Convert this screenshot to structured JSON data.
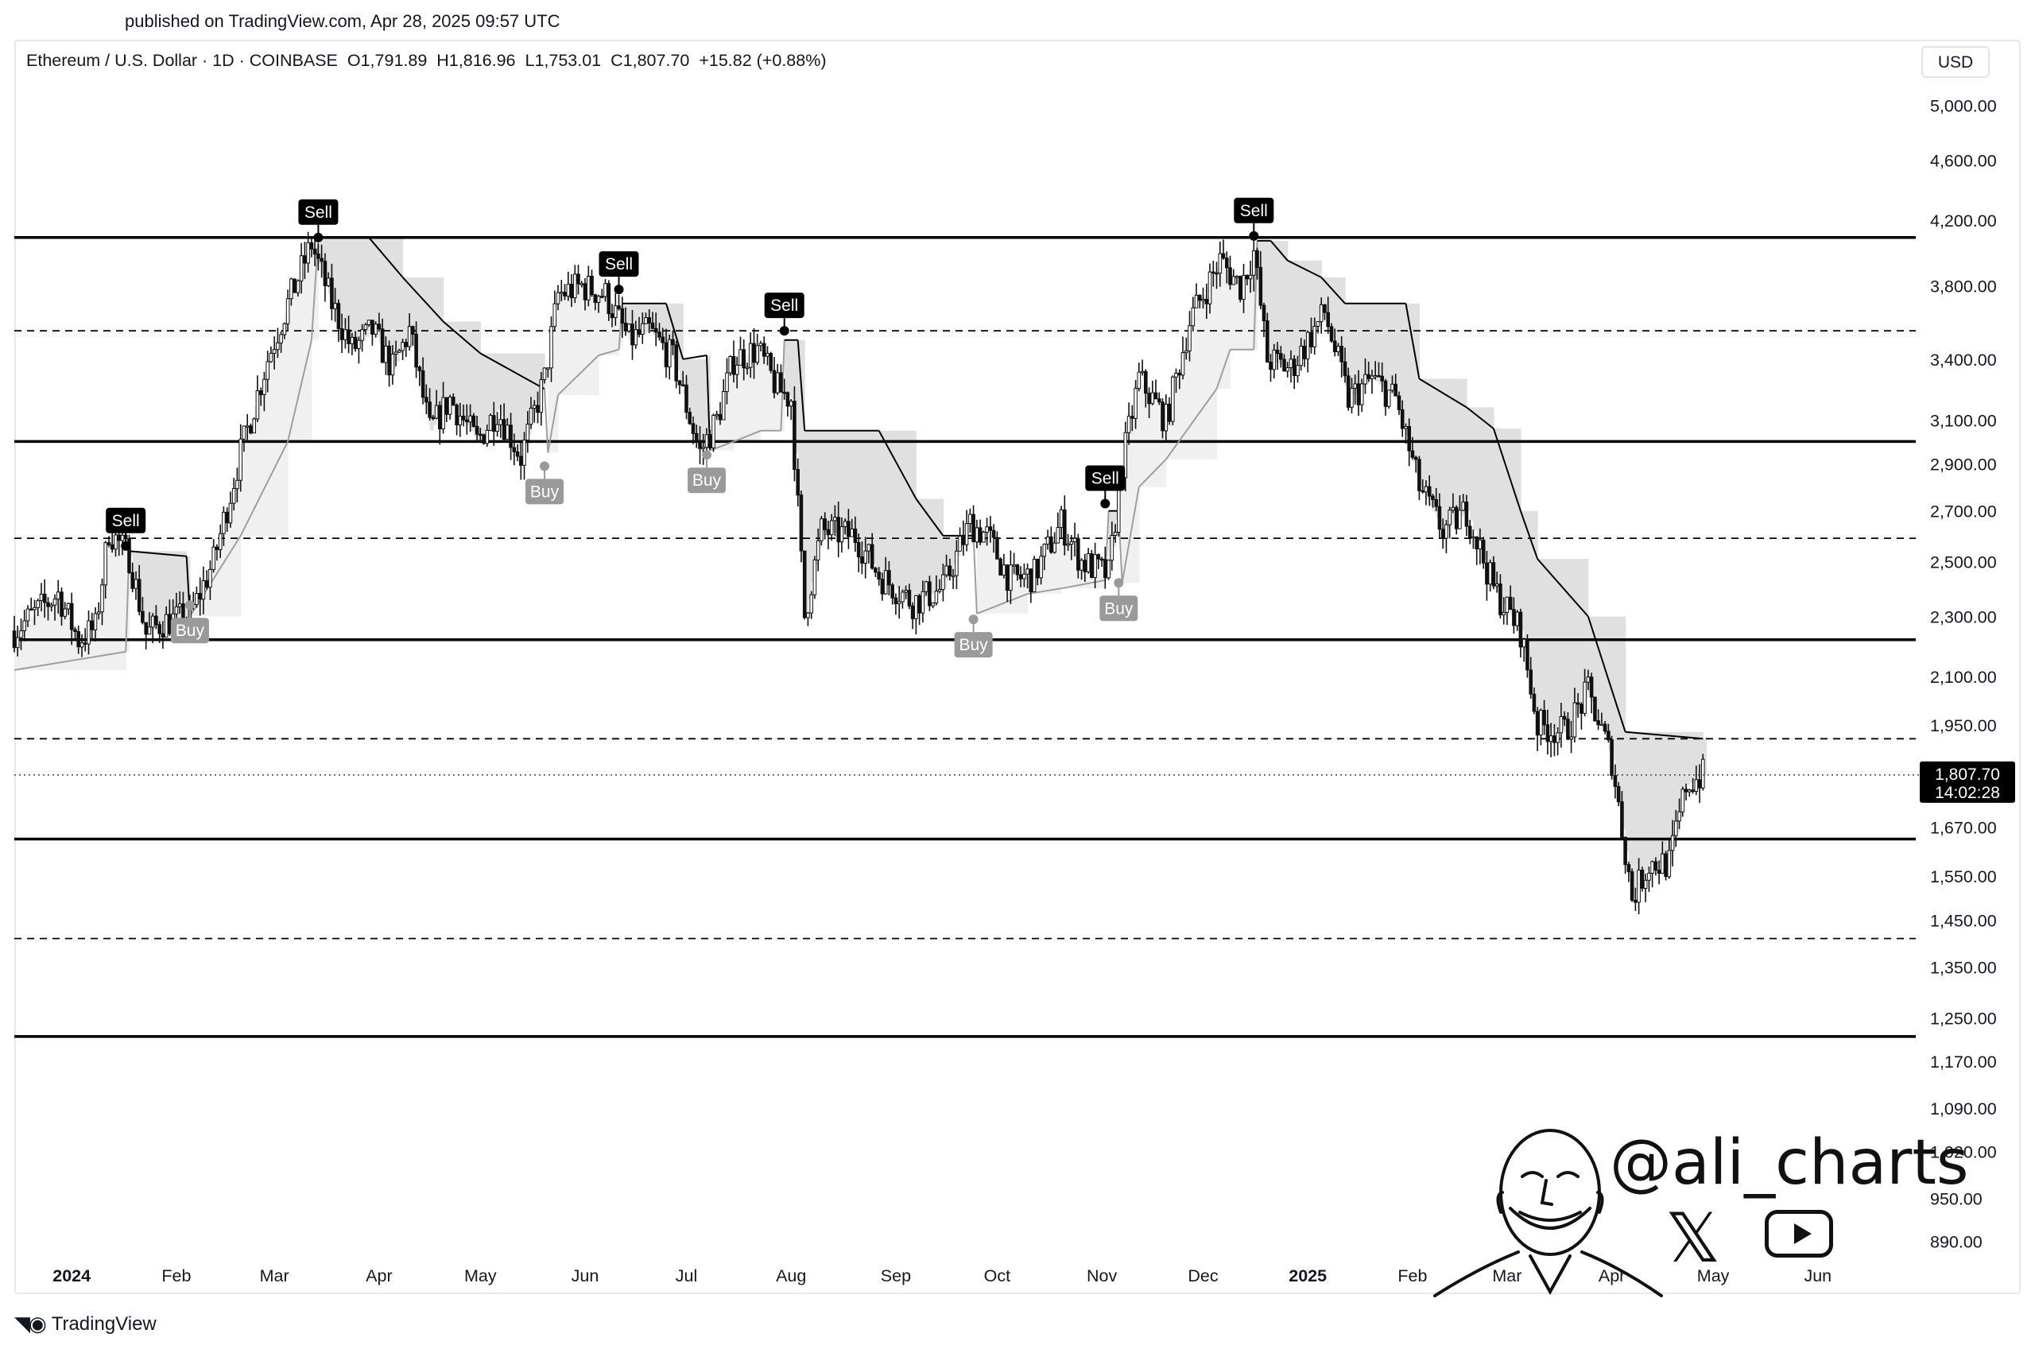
{
  "header": {
    "published": "published on TradingView.com, Apr 28, 2025 09:57 UTC"
  },
  "legend": {
    "symbol": "Ethereum / U.S. Dollar · 1D · COINBASE",
    "open": "O1,791.89",
    "high": "H1,816.96",
    "low": "L1,753.01",
    "close": "C1,807.70",
    "change": "+15.82 (+0.88%)"
  },
  "currency": "USD",
  "footer": {
    "brand": "TradingView"
  },
  "watermark": {
    "handle": "@ali_charts",
    "x_icon": "x-logo-icon",
    "youtube_icon": "youtube-play-icon"
  },
  "chart_data": {
    "type": "candlestick",
    "symbol": "ETH/USD",
    "timeframe": "1D",
    "exchange": "COINBASE",
    "y_scale": "log",
    "y_ticks": [
      5000,
      4600,
      4200,
      3800,
      3400,
      3100,
      2900,
      2700,
      2500,
      2300,
      2100,
      1950,
      1670,
      1550,
      1450,
      1350,
      1250,
      1170,
      1090,
      1020,
      950,
      890
    ],
    "y_tick_labels": [
      "5,000.00",
      "4,600.00",
      "4,200.00",
      "3,800.00",
      "3,400.00",
      "3,100.00",
      "2,900.00",
      "2,700.00",
      "2,500.00",
      "2,300.00",
      "2,100.00",
      "1,950.00",
      "1,670.00",
      "1,550.00",
      "1,450.00",
      "1,350.00",
      "1,250.00",
      "1,170.00",
      "1,090.00",
      "1,020.00",
      "950.00",
      "890.00"
    ],
    "x_ticks": [
      {
        "label": "2024",
        "date": "2024-01-01",
        "bold": true
      },
      {
        "label": "Feb",
        "date": "2024-02-01"
      },
      {
        "label": "Mar",
        "date": "2024-03-01"
      },
      {
        "label": "Apr",
        "date": "2024-04-01"
      },
      {
        "label": "May",
        "date": "2024-05-01"
      },
      {
        "label": "Jun",
        "date": "2024-06-01"
      },
      {
        "label": "Jul",
        "date": "2024-07-01"
      },
      {
        "label": "Aug",
        "date": "2024-08-01"
      },
      {
        "label": "Sep",
        "date": "2024-09-01"
      },
      {
        "label": "Oct",
        "date": "2024-10-01"
      },
      {
        "label": "Nov",
        "date": "2024-11-01"
      },
      {
        "label": "Dec",
        "date": "2024-12-01"
      },
      {
        "label": "2025",
        "date": "2025-01-01",
        "bold": true
      },
      {
        "label": "Feb",
        "date": "2025-02-01"
      },
      {
        "label": "Mar",
        "date": "2025-03-01"
      },
      {
        "label": "Apr",
        "date": "2025-04-01"
      },
      {
        "label": "May",
        "date": "2025-05-01"
      },
      {
        "label": "Jun",
        "date": "2025-06-01"
      }
    ],
    "x_range": [
      "2023-12-15",
      "2025-06-30"
    ],
    "y_range": [
      860,
      5200
    ],
    "horizontal_levels": [
      {
        "price": 4090,
        "style": "solid"
      },
      {
        "price": 3550,
        "style": "dashed"
      },
      {
        "price": 3000,
        "style": "solid"
      },
      {
        "price": 2590,
        "style": "dashed"
      },
      {
        "price": 2220,
        "style": "solid"
      },
      {
        "price": 1910,
        "style": "dashed"
      },
      {
        "price": 1640,
        "style": "solid"
      },
      {
        "price": 1410,
        "style": "dashed"
      },
      {
        "price": 1215,
        "style": "solid"
      }
    ],
    "last_price": {
      "value": 1807.7,
      "label": "1,807.70",
      "countdown": "14:02:28"
    },
    "price_path": [
      [
        "2023-12-15",
        2250
      ],
      [
        "2023-12-22",
        2320
      ],
      [
        "2023-12-28",
        2380
      ],
      [
        "2024-01-03",
        2220
      ],
      [
        "2024-01-08",
        2260
      ],
      [
        "2024-01-12",
        2620
      ],
      [
        "2024-01-18",
        2520
      ],
      [
        "2024-01-23",
        2240
      ],
      [
        "2024-01-28",
        2280
      ],
      [
        "2024-02-05",
        2300
      ],
      [
        "2024-02-12",
        2500
      ],
      [
        "2024-02-20",
        2950
      ],
      [
        "2024-02-28",
        3400
      ],
      [
        "2024-03-05",
        3700
      ],
      [
        "2024-03-12",
        4050
      ],
      [
        "2024-03-18",
        3700
      ],
      [
        "2024-03-24",
        3450
      ],
      [
        "2024-03-30",
        3550
      ],
      [
        "2024-04-05",
        3350
      ],
      [
        "2024-04-10",
        3550
      ],
      [
        "2024-04-16",
        3050
      ],
      [
        "2024-04-22",
        3200
      ],
      [
        "2024-04-30",
        3000
      ],
      [
        "2024-05-06",
        3150
      ],
      [
        "2024-05-13",
        2930
      ],
      [
        "2024-05-20",
        3300
      ],
      [
        "2024-05-24",
        3750
      ],
      [
        "2024-05-31",
        3800
      ],
      [
        "2024-06-07",
        3750
      ],
      [
        "2024-06-14",
        3500
      ],
      [
        "2024-06-20",
        3550
      ],
      [
        "2024-06-27",
        3400
      ],
      [
        "2024-07-05",
        2950
      ],
      [
        "2024-07-10",
        3100
      ],
      [
        "2024-07-15",
        3400
      ],
      [
        "2024-07-22",
        3450
      ],
      [
        "2024-07-28",
        3250
      ],
      [
        "2024-08-01",
        3200
      ],
      [
        "2024-08-05",
        2300
      ],
      [
        "2024-08-10",
        2620
      ],
      [
        "2024-08-20",
        2600
      ],
      [
        "2024-08-27",
        2450
      ],
      [
        "2024-09-06",
        2350
      ],
      [
        "2024-09-15",
        2400
      ],
      [
        "2024-09-23",
        2650
      ],
      [
        "2024-09-28",
        2600
      ],
      [
        "2024-10-05",
        2430
      ],
      [
        "2024-10-12",
        2450
      ],
      [
        "2024-10-20",
        2650
      ],
      [
        "2024-10-26",
        2500
      ],
      [
        "2024-11-03",
        2450
      ],
      [
        "2024-11-07",
        2900
      ],
      [
        "2024-11-12",
        3300
      ],
      [
        "2024-11-20",
        3100
      ],
      [
        "2024-11-27",
        3600
      ],
      [
        "2024-12-06",
        3950
      ],
      [
        "2024-12-12",
        3800
      ],
      [
        "2024-12-16",
        4000
      ],
      [
        "2024-12-20",
        3400
      ],
      [
        "2024-12-27",
        3350
      ],
      [
        "2025-01-06",
        3650
      ],
      [
        "2025-01-13",
        3200
      ],
      [
        "2025-01-20",
        3300
      ],
      [
        "2025-01-27",
        3200
      ],
      [
        "2025-02-03",
        2800
      ],
      [
        "2025-02-10",
        2620
      ],
      [
        "2025-02-17",
        2700
      ],
      [
        "2025-02-25",
        2400
      ],
      [
        "2025-03-05",
        2250
      ],
      [
        "2025-03-10",
        1950
      ],
      [
        "2025-03-18",
        1930
      ],
      [
        "2025-03-25",
        2050
      ],
      [
        "2025-04-01",
        1850
      ],
      [
        "2025-04-07",
        1500
      ],
      [
        "2025-04-12",
        1580
      ],
      [
        "2025-04-18",
        1580
      ],
      [
        "2025-04-23",
        1780
      ],
      [
        "2025-04-28",
        1807.7
      ]
    ],
    "supertrend": [
      [
        "2023-12-15",
        2120
      ],
      [
        "2024-01-17",
        2180
      ],
      [
        "2024-01-18",
        2540
      ],
      [
        "2024-02-04",
        2520
      ],
      [
        "2024-02-05",
        2300
      ],
      [
        "2024-02-20",
        2600
      ],
      [
        "2024-03-05",
        3000
      ],
      [
        "2024-03-12",
        3500
      ],
      [
        "2024-03-14",
        4090
      ],
      [
        "2024-03-29",
        4090
      ],
      [
        "2024-04-08",
        3850
      ],
      [
        "2024-04-20",
        3600
      ],
      [
        "2024-05-01",
        3430
      ],
      [
        "2024-05-20",
        3250
      ],
      [
        "2024-05-21",
        2950
      ],
      [
        "2024-05-24",
        3220
      ],
      [
        "2024-06-05",
        3420
      ],
      [
        "2024-06-11",
        3450
      ],
      [
        "2024-06-12",
        3700
      ],
      [
        "2024-06-25",
        3700
      ],
      [
        "2024-06-30",
        3400
      ],
      [
        "2024-07-07",
        3420
      ],
      [
        "2024-07-08",
        2960
      ],
      [
        "2024-07-15",
        3000
      ],
      [
        "2024-07-23",
        3050
      ],
      [
        "2024-07-29",
        3050
      ],
      [
        "2024-07-30",
        3500
      ],
      [
        "2024-08-03",
        3500
      ],
      [
        "2024-08-05",
        3050
      ],
      [
        "2024-08-27",
        3050
      ],
      [
        "2024-09-07",
        2750
      ],
      [
        "2024-09-15",
        2600
      ],
      [
        "2024-09-24",
        2600
      ],
      [
        "2024-09-25",
        2310
      ],
      [
        "2024-10-10",
        2380
      ],
      [
        "2024-10-20",
        2400
      ],
      [
        "2024-11-02",
        2430
      ],
      [
        "2024-11-03",
        2700
      ],
      [
        "2024-11-06",
        2700
      ],
      [
        "2024-11-07",
        2420
      ],
      [
        "2024-11-12",
        2800
      ],
      [
        "2024-11-20",
        2920
      ],
      [
        "2024-12-05",
        3250
      ],
      [
        "2024-12-09",
        3450
      ],
      [
        "2024-12-16",
        3450
      ],
      [
        "2024-12-17",
        4070
      ],
      [
        "2024-12-21",
        4070
      ],
      [
        "2024-12-26",
        3950
      ],
      [
        "2025-01-05",
        3850
      ],
      [
        "2025-01-12",
        3700
      ],
      [
        "2025-01-30",
        3700
      ],
      [
        "2025-02-03",
        3300
      ],
      [
        "2025-02-17",
        3160
      ],
      [
        "2025-02-25",
        3060
      ],
      [
        "2025-03-05",
        2700
      ],
      [
        "2025-03-10",
        2510
      ],
      [
        "2025-03-25",
        2300
      ],
      [
        "2025-04-05",
        1930
      ],
      [
        "2025-04-28",
        1910
      ]
    ],
    "signals": [
      {
        "type": "Sell",
        "date": "2024-01-17",
        "price": 2560
      },
      {
        "type": "Buy",
        "date": "2024-02-05",
        "price": 2340
      },
      {
        "type": "Sell",
        "date": "2024-03-14",
        "price": 4090
      },
      {
        "type": "Buy",
        "date": "2024-05-20",
        "price": 2890
      },
      {
        "type": "Sell",
        "date": "2024-06-11",
        "price": 3780
      },
      {
        "type": "Buy",
        "date": "2024-07-07",
        "price": 2940
      },
      {
        "type": "Sell",
        "date": "2024-07-30",
        "price": 3550
      },
      {
        "type": "Buy",
        "date": "2024-09-24",
        "price": 2290
      },
      {
        "type": "Sell",
        "date": "2024-11-02",
        "price": 2730
      },
      {
        "type": "Buy",
        "date": "2024-11-06",
        "price": 2420
      },
      {
        "type": "Sell",
        "date": "2024-12-16",
        "price": 4100
      }
    ],
    "grid": false,
    "legend_position": "top-left"
  },
  "colors": {
    "candle": "#111111",
    "supertrend_down": "#000000",
    "supertrend_up": "#9e9e9e",
    "fill_down": "#e0e0e0",
    "fill_up": "#f0f0f0",
    "sell_label": "#000000",
    "buy_label": "#9a9a9a",
    "price_label": "#000000"
  }
}
